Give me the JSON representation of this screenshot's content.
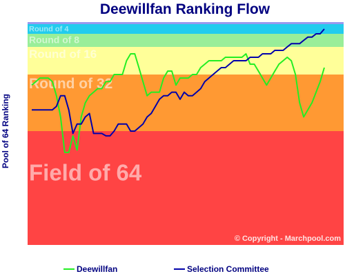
{
  "chart_data": {
    "type": "line",
    "title": "Deewillfan Ranking Flow",
    "ylabel": "Pool of 64 Ranking",
    "xlabel": "",
    "ylim": [
      64,
      1
    ],
    "grid": false,
    "legend_position": "bottom",
    "copyright": "© Copyright - Marchpool.com",
    "bands": [
      {
        "label": "Round of 4",
        "from": 1,
        "to": 2,
        "color": "#22ccee"
      },
      {
        "label": "Round of 8",
        "from": 2,
        "to": 4,
        "color": "#99ee99"
      },
      {
        "label": "Round of 16",
        "from": 4,
        "to": 8,
        "color": "#ffff99"
      },
      {
        "label": "Round of 32",
        "from": 8,
        "to": 16,
        "color": "#ff9933"
      },
      {
        "label": "Field of 64",
        "from": 16,
        "to": 64,
        "color": "#ff4444"
      }
    ],
    "x": [
      1,
      2,
      3,
      4,
      5,
      6,
      7,
      8,
      9,
      10,
      11,
      12,
      13,
      14,
      15,
      16,
      17,
      18,
      19,
      20,
      21,
      22,
      23,
      24,
      25,
      26,
      27,
      28,
      29,
      30,
      31,
      32,
      33,
      34,
      35,
      36,
      37,
      38,
      39,
      40,
      41,
      42,
      43,
      44,
      45,
      46,
      47,
      48,
      49,
      50,
      51,
      52,
      53,
      54,
      55,
      56,
      57,
      58,
      59,
      60,
      61,
      62,
      63,
      64,
      65,
      66,
      67,
      68,
      69,
      70,
      71,
      72
    ],
    "series": [
      {
        "name": "Deewillfan",
        "color": "#22ee22",
        "values": [
          9.5,
          9,
          8.5,
          8.5,
          8.5,
          9,
          11,
          14,
          25,
          25,
          18,
          24,
          14,
          12,
          11,
          10.5,
          10,
          10,
          9,
          9,
          8,
          8,
          8,
          6,
          5,
          5,
          7,
          9,
          11,
          10.5,
          10.5,
          10.5,
          8.5,
          7.5,
          7.5,
          9.5,
          8.5,
          8.5,
          8.5,
          8,
          8,
          7,
          6.5,
          6,
          6,
          6,
          6,
          5.5,
          5.5,
          5.5,
          5.5,
          5.5,
          5,
          6.5,
          6.5,
          7.5,
          8.5,
          9.5,
          8.5,
          7.5,
          6.5,
          6,
          5.5,
          6,
          8,
          12,
          14,
          13,
          12,
          10.5,
          9,
          7
        ]
      },
      {
        "name": "Selection Committee",
        "color": "#0000aa",
        "values": [
          13,
          13,
          13,
          13,
          13,
          13,
          12.5,
          11,
          11,
          13,
          17,
          15,
          15,
          14,
          13.5,
          17,
          17,
          17,
          18,
          18,
          16,
          15,
          15,
          15,
          16,
          16,
          15.5,
          15,
          14,
          13.5,
          12.5,
          11.5,
          11,
          11,
          10.5,
          10.5,
          11.5,
          10.5,
          11,
          11,
          10.5,
          10,
          9,
          8.5,
          8,
          7.5,
          7,
          7,
          6.5,
          6,
          6,
          6,
          6,
          5.5,
          5.5,
          5.5,
          5,
          5,
          5,
          4.5,
          4.5,
          4.5,
          4,
          3.5,
          3.5,
          3.5,
          3,
          2.5,
          2.5,
          2,
          2,
          1.5
        ]
      }
    ]
  }
}
